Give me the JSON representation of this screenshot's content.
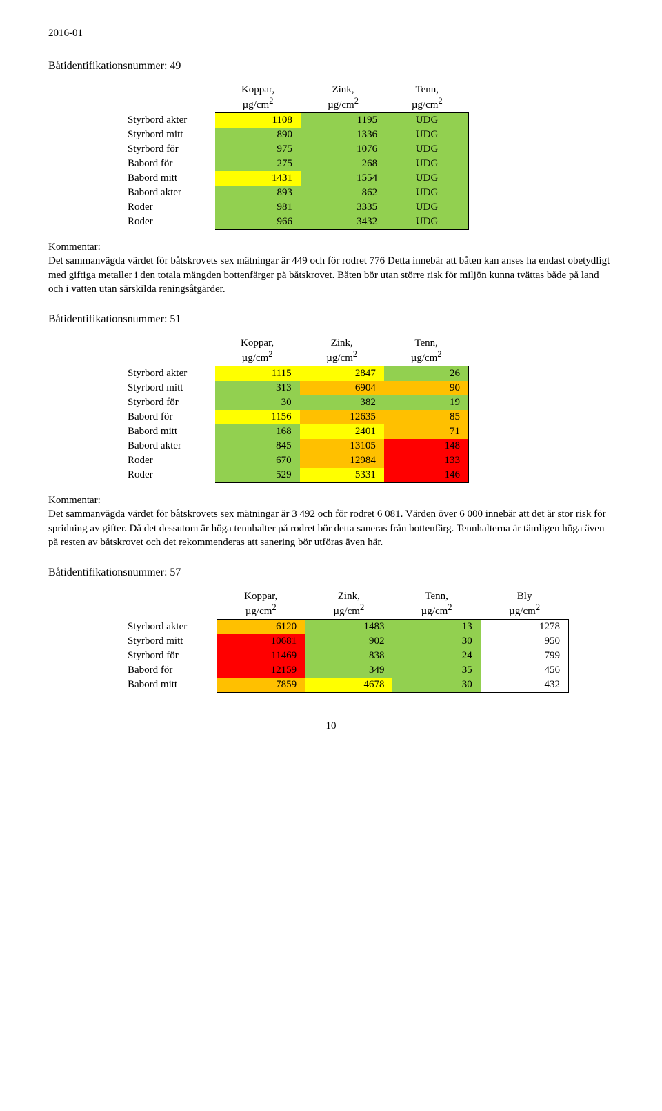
{
  "colors": {
    "green": "#92d050",
    "yellow": "#ffff00",
    "orange": "#ffc000",
    "red": "#ff0000",
    "white": "#ffffff"
  },
  "header_date": "2016-01",
  "page_number": "10",
  "kommentar_label": "Kommentar:",
  "col_headers": {
    "koppar": "Koppar,",
    "zink": "Zink,",
    "tenn": "Tenn,",
    "bly": "Bly",
    "unit": "µg/cm"
  },
  "row_labels": {
    "sa": "Styrbord akter",
    "sm": "Styrbord mitt",
    "sf": "Styrbord för",
    "bf": "Babord för",
    "bm": "Babord mitt",
    "ba": "Babord akter",
    "r1": "Roder",
    "r2": "Roder"
  },
  "sections": [
    {
      "title": "Båtidentifikationsnummer: 49",
      "cols": [
        "koppar",
        "zink",
        "tenn"
      ],
      "rows": [
        {
          "key": "sa",
          "cells": [
            {
              "v": "1108",
              "c": "yellow"
            },
            {
              "v": "1195",
              "c": "green"
            },
            {
              "v": "UDG",
              "c": "green",
              "center": true
            }
          ]
        },
        {
          "key": "sm",
          "cells": [
            {
              "v": "890",
              "c": "green"
            },
            {
              "v": "1336",
              "c": "green"
            },
            {
              "v": "UDG",
              "c": "green",
              "center": true
            }
          ]
        },
        {
          "key": "sf",
          "cells": [
            {
              "v": "975",
              "c": "green"
            },
            {
              "v": "1076",
              "c": "green"
            },
            {
              "v": "UDG",
              "c": "green",
              "center": true
            }
          ]
        },
        {
          "key": "bf",
          "cells": [
            {
              "v": "275",
              "c": "green"
            },
            {
              "v": "268",
              "c": "green"
            },
            {
              "v": "UDG",
              "c": "green",
              "center": true
            }
          ]
        },
        {
          "key": "bm",
          "cells": [
            {
              "v": "1431",
              "c": "yellow"
            },
            {
              "v": "1554",
              "c": "green"
            },
            {
              "v": "UDG",
              "c": "green",
              "center": true
            }
          ]
        },
        {
          "key": "ba",
          "cells": [
            {
              "v": "893",
              "c": "green"
            },
            {
              "v": "862",
              "c": "green"
            },
            {
              "v": "UDG",
              "c": "green",
              "center": true
            }
          ]
        },
        {
          "key": "r1",
          "cells": [
            {
              "v": "981",
              "c": "green"
            },
            {
              "v": "3335",
              "c": "green"
            },
            {
              "v": "UDG",
              "c": "green",
              "center": true
            }
          ]
        },
        {
          "key": "r2",
          "cells": [
            {
              "v": "966",
              "c": "green"
            },
            {
              "v": "3432",
              "c": "green"
            },
            {
              "v": "UDG",
              "c": "green",
              "center": true
            }
          ]
        }
      ],
      "kommentar": "Det sammanvägda värdet för båtskrovets sex mätningar är 449 och för rodret 776\nDetta innebär att båten kan anses ha endast obetydligt med giftiga metaller i den totala mängden bottenfärger på båtskrovet. Båten bör utan större risk för miljön kunna tvättas både på land och i vatten utan särskilda reningsåtgärder."
    },
    {
      "title": "Båtidentifikationsnummer: 51",
      "cols": [
        "koppar",
        "zink",
        "tenn"
      ],
      "rows": [
        {
          "key": "sa",
          "cells": [
            {
              "v": "1115",
              "c": "yellow"
            },
            {
              "v": "2847",
              "c": "yellow"
            },
            {
              "v": "26",
              "c": "green"
            }
          ]
        },
        {
          "key": "sm",
          "cells": [
            {
              "v": "313",
              "c": "green"
            },
            {
              "v": "6904",
              "c": "orange"
            },
            {
              "v": "90",
              "c": "orange"
            }
          ]
        },
        {
          "key": "sf",
          "cells": [
            {
              "v": "30",
              "c": "green"
            },
            {
              "v": "382",
              "c": "green"
            },
            {
              "v": "19",
              "c": "green"
            }
          ]
        },
        {
          "key": "bf",
          "cells": [
            {
              "v": "1156",
              "c": "yellow"
            },
            {
              "v": "12635",
              "c": "orange"
            },
            {
              "v": "85",
              "c": "orange"
            }
          ]
        },
        {
          "key": "bm",
          "cells": [
            {
              "v": "168",
              "c": "green"
            },
            {
              "v": "2401",
              "c": "yellow"
            },
            {
              "v": "71",
              "c": "orange"
            }
          ]
        },
        {
          "key": "ba",
          "cells": [
            {
              "v": "845",
              "c": "green"
            },
            {
              "v": "13105",
              "c": "orange"
            },
            {
              "v": "148",
              "c": "red"
            }
          ]
        },
        {
          "key": "r1",
          "cells": [
            {
              "v": "670",
              "c": "green"
            },
            {
              "v": "12984",
              "c": "orange"
            },
            {
              "v": "133",
              "c": "red"
            }
          ]
        },
        {
          "key": "r2",
          "cells": [
            {
              "v": "529",
              "c": "green"
            },
            {
              "v": "5331",
              "c": "yellow"
            },
            {
              "v": "146",
              "c": "red"
            }
          ]
        }
      ],
      "kommentar": "Det sammanvägda värdet för båtskrovets sex mätningar är 3 492 och för rodret 6 081. Värden över 6 000 innebär att det är stor risk för spridning av gifter. Då det dessutom är höga tennhalter på rodret bör detta saneras från bottenfärg. Tennhalterna är tämligen höga även på resten av båtskrovet och det rekommenderas att sanering bör utföras även här."
    },
    {
      "title": "Båtidentifikationsnummer: 57",
      "cols": [
        "koppar",
        "zink",
        "tenn",
        "bly"
      ],
      "rows": [
        {
          "key": "sa",
          "cells": [
            {
              "v": "6120",
              "c": "orange"
            },
            {
              "v": "1483",
              "c": "green"
            },
            {
              "v": "13",
              "c": "green"
            },
            {
              "v": "1278",
              "c": "white"
            }
          ]
        },
        {
          "key": "sm",
          "cells": [
            {
              "v": "10681",
              "c": "red"
            },
            {
              "v": "902",
              "c": "green"
            },
            {
              "v": "30",
              "c": "green"
            },
            {
              "v": "950",
              "c": "white"
            }
          ]
        },
        {
          "key": "sf",
          "cells": [
            {
              "v": "11469",
              "c": "red"
            },
            {
              "v": "838",
              "c": "green"
            },
            {
              "v": "24",
              "c": "green"
            },
            {
              "v": "799",
              "c": "white"
            }
          ]
        },
        {
          "key": "bf",
          "cells": [
            {
              "v": "12159",
              "c": "red"
            },
            {
              "v": "349",
              "c": "green"
            },
            {
              "v": "35",
              "c": "green"
            },
            {
              "v": "456",
              "c": "white"
            }
          ]
        },
        {
          "key": "bm",
          "cells": [
            {
              "v": "7859",
              "c": "orange"
            },
            {
              "v": "4678",
              "c": "yellow"
            },
            {
              "v": "30",
              "c": "green"
            },
            {
              "v": "432",
              "c": "white"
            }
          ]
        }
      ],
      "kommentar": null
    }
  ]
}
